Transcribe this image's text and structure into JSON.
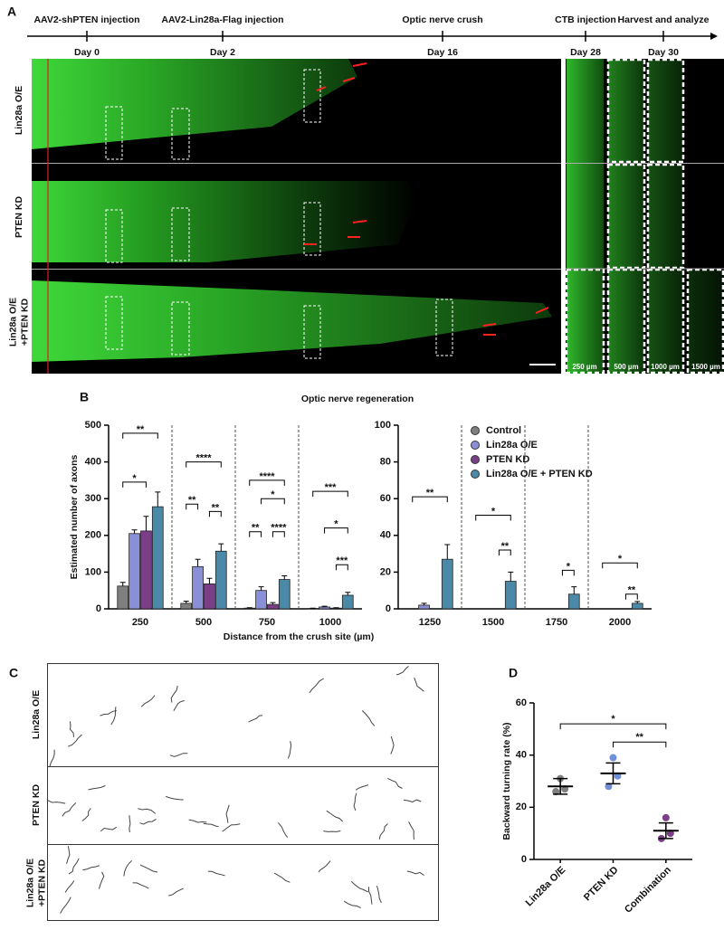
{
  "panel_labels": [
    "A",
    "B",
    "C",
    "D"
  ],
  "timeline": [
    {
      "label": "AAV2-shPTEN injection",
      "day": "Day 0"
    },
    {
      "label": "AAV2-Lin28a-Flag injection",
      "day": "Day 2"
    },
    {
      "label": "Optic nerve crush",
      "day": "Day 16"
    },
    {
      "label": "CTB injection",
      "day": "Day 28"
    },
    {
      "label": "Harvest and analyze",
      "day": "Day 30"
    }
  ],
  "panel_a": {
    "rows": [
      [
        "Lin28a O/E"
      ],
      [
        "PTEN KD"
      ],
      [
        "Lin28a O/E",
        "+PTEN KD"
      ]
    ],
    "distances": [
      "250 µm",
      "500 µm",
      "1000 µm",
      "1500 µm"
    ]
  },
  "panel_b": {
    "title": "Optic nerve regeneration",
    "x_label": "Distance from the crush site (µm)"
  },
  "chart_data": [
    {
      "type": "bar",
      "y_label": "Estimated number of axons",
      "categories": [
        "250",
        "500",
        "750",
        "1000"
      ],
      "ylim": [
        0,
        500
      ],
      "yticks": [
        0,
        100,
        200,
        300,
        400,
        500
      ],
      "series": [
        {
          "name": "Control",
          "color": "#7f7f7f",
          "values": [
            62,
            15,
            2,
            1
          ],
          "errors": [
            10,
            6,
            1,
            1
          ]
        },
        {
          "name": "Lin28a O/E",
          "color": "#8a90d8",
          "values": [
            205,
            115,
            50,
            5
          ],
          "errors": [
            10,
            20,
            10,
            2
          ]
        },
        {
          "name": "PTEN KD",
          "color": "#7b3f87",
          "values": [
            212,
            68,
            12,
            2
          ],
          "errors": [
            40,
            15,
            5,
            1
          ]
        },
        {
          "name": "Lin28a O/E + PTEN KD",
          "color": "#4a89a8",
          "values": [
            278,
            157,
            80,
            37
          ],
          "errors": [
            40,
            20,
            10,
            8
          ]
        }
      ],
      "annotations": [
        {
          "label": "**",
          "category": 0,
          "from": 0,
          "to": 3,
          "y": 478
        },
        {
          "label": "*",
          "category": 0,
          "from": 0,
          "to": 2,
          "y": 345
        },
        {
          "label": "****",
          "category": 1,
          "from": 0,
          "to": 3,
          "y": 400
        },
        {
          "label": "**",
          "category": 1,
          "from": 0,
          "to": 1,
          "y": 285
        },
        {
          "label": "**",
          "category": 1,
          "from": 2,
          "to": 3,
          "y": 265
        },
        {
          "label": "****",
          "category": 2,
          "from": 0,
          "to": 3,
          "y": 350
        },
        {
          "label": "*",
          "category": 2,
          "from": 1,
          "to": 3,
          "y": 300
        },
        {
          "label": "**",
          "category": 2,
          "from": 0,
          "to": 1,
          "y": 210
        },
        {
          "label": "****",
          "category": 2,
          "from": 2,
          "to": 3,
          "y": 210
        },
        {
          "label": "***",
          "category": 3,
          "from": 0,
          "to": 3,
          "y": 320
        },
        {
          "label": "*",
          "category": 3,
          "from": 1,
          "to": 3,
          "y": 220
        },
        {
          "label": "***",
          "category": 3,
          "from": 2,
          "to": 3,
          "y": 120
        }
      ]
    },
    {
      "type": "bar",
      "categories": [
        "1250",
        "1500",
        "1750",
        "2000"
      ],
      "ylim": [
        0,
        100
      ],
      "yticks": [
        0,
        20,
        40,
        60,
        80,
        100
      ],
      "legend": "upper right",
      "series": [
        {
          "name": "Control",
          "color": "#7f7f7f",
          "values": [
            0,
            0,
            0,
            0
          ],
          "errors": [
            0,
            0,
            0,
            0
          ]
        },
        {
          "name": "Lin28a O/E",
          "color": "#8a90d8",
          "values": [
            2,
            0,
            0,
            0
          ],
          "errors": [
            1,
            0,
            0,
            0
          ]
        },
        {
          "name": "PTEN KD",
          "color": "#7b3f87",
          "values": [
            0,
            0,
            0,
            0
          ],
          "errors": [
            0,
            0,
            0,
            0
          ]
        },
        {
          "name": "Lin28a O/E + PTEN KD",
          "color": "#4a89a8",
          "values": [
            27,
            15,
            8,
            3
          ],
          "errors": [
            8,
            5,
            4,
            1
          ]
        }
      ],
      "annotations": [
        {
          "label": "**",
          "category": 0,
          "from": 0,
          "to": 3,
          "y": 61
        },
        {
          "label": "*",
          "category": 1,
          "from": 0,
          "to": 3,
          "y": 51
        },
        {
          "label": "**",
          "category": 1,
          "from": 2,
          "to": 3,
          "y": 32
        },
        {
          "label": "*",
          "category": 2,
          "from": 2,
          "to": 3,
          "y": 21
        },
        {
          "label": "*",
          "category": 3,
          "from": 0,
          "to": 3,
          "y": 25
        },
        {
          "label": "**",
          "category": 3,
          "from": 2,
          "to": 3,
          "y": 8
        }
      ]
    },
    {
      "type": "dot",
      "y_label": "Backward turning rate (%)",
      "categories": [
        "Lin28a O/E",
        "PTEN KD",
        "Combination"
      ],
      "colors": [
        "#7f7f7f",
        "#6f8fd8",
        "#7b3f87"
      ],
      "ylim": [
        0,
        60
      ],
      "yticks": [
        0,
        20,
        40,
        60
      ],
      "values": [
        28,
        33,
        11
      ],
      "errors": [
        3,
        4,
        3
      ],
      "points": [
        [
          31,
          26,
          27
        ],
        [
          39,
          28,
          32
        ],
        [
          16,
          8,
          10
        ]
      ],
      "annotations": [
        {
          "label": "*",
          "from": 0,
          "to": 2,
          "y": 52
        },
        {
          "label": "**",
          "from": 1,
          "to": 2,
          "y": 45
        }
      ]
    }
  ],
  "panel_c": {
    "rows": [
      [
        "Lin28a O/E"
      ],
      [
        "PTEN KD"
      ],
      [
        "Lin28a O/E",
        "+PTEN KD"
      ]
    ]
  }
}
